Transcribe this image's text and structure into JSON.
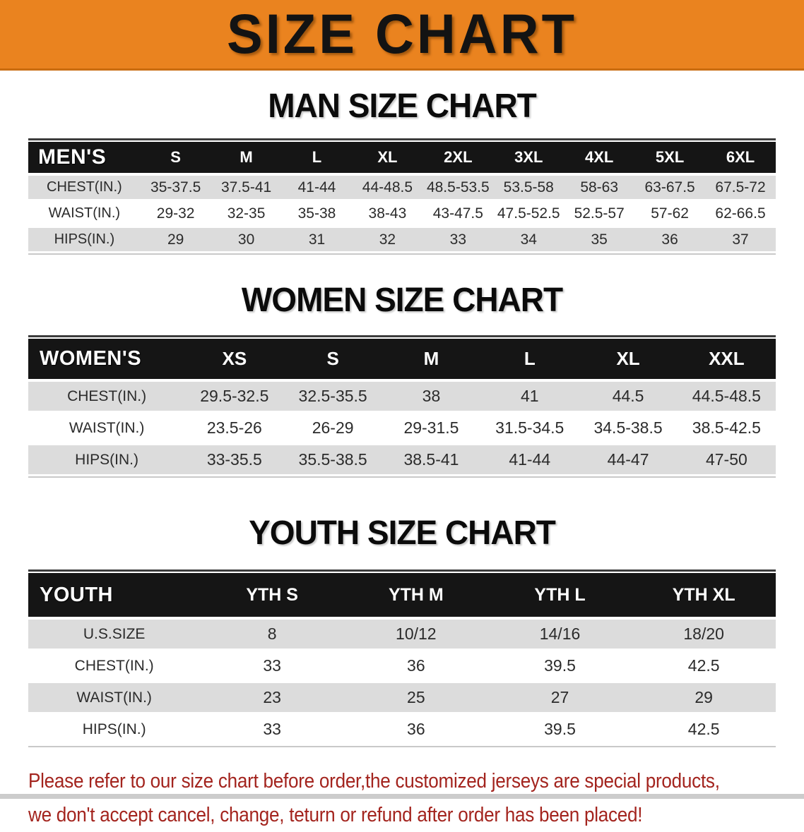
{
  "banner": {
    "title": "SIZE CHART"
  },
  "colors": {
    "banner_orange": "#EA831F",
    "header_black": "#151515",
    "row_gray": "#DCDCDC",
    "row_white": "#FFFFFF",
    "disclaimer_red": "#A3241E"
  },
  "chart_data": [
    {
      "type": "table",
      "id": "mens",
      "heading": "MAN SIZE CHART",
      "corner_label": "MEN'S",
      "columns": [
        "S",
        "M",
        "L",
        "XL",
        "2XL",
        "3XL",
        "4XL",
        "5XL",
        "6XL"
      ],
      "rows": [
        {
          "label": "CHEST(IN.)",
          "values": [
            "35-37.5",
            "37.5-41",
            "41-44",
            "44-48.5",
            "48.5-53.5",
            "53.5-58",
            "58-63",
            "63-67.5",
            "67.5-72"
          ]
        },
        {
          "label": "WAIST(IN.)",
          "values": [
            "29-32",
            "32-35",
            "35-38",
            "38-43",
            "43-47.5",
            "47.5-52.5",
            "52.5-57",
            "57-62",
            "62-66.5"
          ]
        },
        {
          "label": "HIPS(IN.)",
          "values": [
            "29",
            "30",
            "31",
            "32",
            "33",
            "34",
            "35",
            "36",
            "37"
          ]
        }
      ]
    },
    {
      "type": "table",
      "id": "womens",
      "heading": "WOMEN SIZE CHART",
      "corner_label": "WOMEN'S",
      "columns": [
        "XS",
        "S",
        "M",
        "L",
        "XL",
        "XXL"
      ],
      "rows": [
        {
          "label": "CHEST(IN.)",
          "values": [
            "29.5-32.5",
            "32.5-35.5",
            "38",
            "41",
            "44.5",
            "44.5-48.5"
          ]
        },
        {
          "label": "WAIST(IN.)",
          "values": [
            "23.5-26",
            "26-29",
            "29-31.5",
            "31.5-34.5",
            "34.5-38.5",
            "38.5-42.5"
          ]
        },
        {
          "label": "HIPS(IN.)",
          "values": [
            "33-35.5",
            "35.5-38.5",
            "38.5-41",
            "41-44",
            "44-47",
            "47-50"
          ]
        }
      ]
    },
    {
      "type": "table",
      "id": "youth",
      "heading": "YOUTH SIZE CHART",
      "corner_label": "YOUTH",
      "columns": [
        "YTH S",
        "YTH M",
        "YTH L",
        "YTH XL"
      ],
      "rows": [
        {
          "label": "U.S.SIZE",
          "values": [
            "8",
            "10/12",
            "14/16",
            "18/20"
          ]
        },
        {
          "label": "CHEST(IN.)",
          "values": [
            "33",
            "36",
            "39.5",
            "42.5"
          ]
        },
        {
          "label": "WAIST(IN.)",
          "values": [
            "23",
            "25",
            "27",
            "29"
          ]
        },
        {
          "label": "HIPS(IN.)",
          "values": [
            "33",
            "36",
            "39.5",
            "42.5"
          ]
        }
      ]
    }
  ],
  "disclaimer": {
    "lines": [
      "Please refer to our size chart before order,the customized jerseys are special products,",
      "we don't accept cancel, change, teturn or refund after order has been placed!"
    ]
  }
}
